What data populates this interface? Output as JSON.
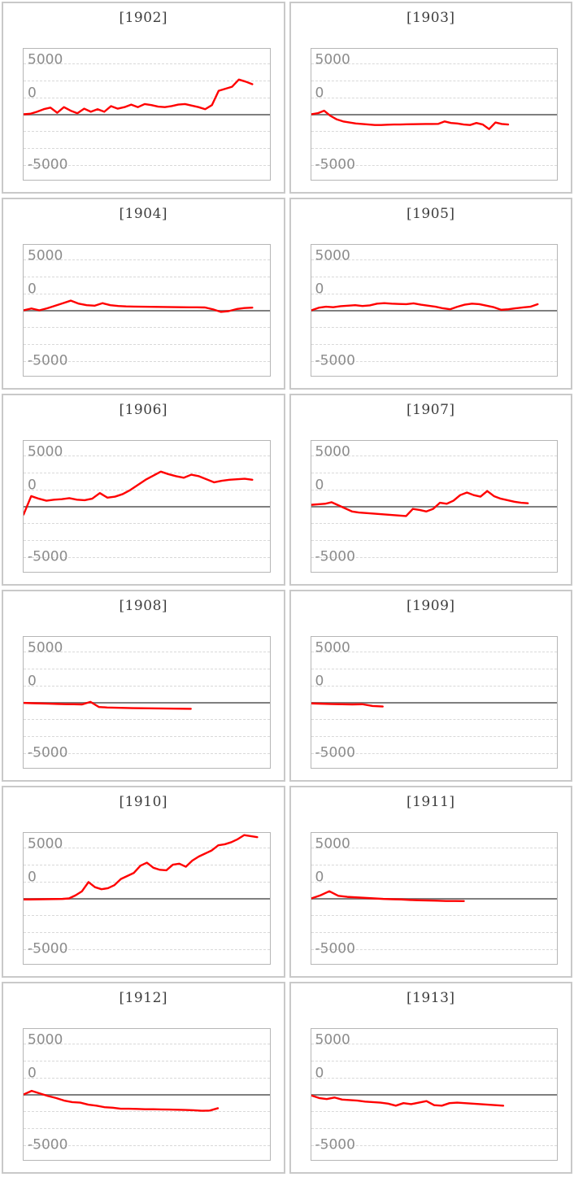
{
  "colors": {
    "line": "#ff0000",
    "zero_axis_line": "#7f7f7f",
    "gridline": "#d9d9d9",
    "tick_text": "#8c8c8c",
    "title_text": "#3d3d3d",
    "panel_border": "#c9c9c9",
    "plot_border": "#b6b6b6",
    "background": "#ffffff"
  },
  "axis": {
    "tick_labels": [
      "5000",
      "0",
      "-5000"
    ]
  },
  "chart_data": [
    {
      "type": "line",
      "title": "[1902]",
      "yticks": [
        5000,
        0,
        -5000
      ],
      "ylim": [
        -6400,
        6400
      ],
      "grid": "horizontal-dashed",
      "zero_axis": true,
      "x_end_fraction": 0.93,
      "values": [
        0,
        50,
        250,
        500,
        650,
        150,
        700,
        350,
        100,
        550,
        250,
        500,
        250,
        800,
        550,
        700,
        950,
        700,
        1000,
        900,
        750,
        700,
        800,
        950,
        1000,
        850,
        700,
        500,
        900,
        2300,
        2500,
        2700,
        3400,
        3200,
        2950
      ]
    },
    {
      "type": "line",
      "title": "[1903]",
      "yticks": [
        5000,
        0,
        -5000
      ],
      "ylim": [
        -6400,
        6400
      ],
      "grid": "horizontal-dashed",
      "zero_axis": true,
      "x_end_fraction": 0.8,
      "values": [
        0,
        100,
        350,
        -150,
        -500,
        -700,
        -800,
        -900,
        -950,
        -1000,
        -1050,
        -1050,
        -1020,
        -1000,
        -1000,
        -980,
        -970,
        -960,
        -950,
        -950,
        -940,
        -700,
        -850,
        -900,
        -1000,
        -1050,
        -850,
        -1000,
        -1450,
        -800,
        -950,
        -1000
      ]
    },
    {
      "type": "line",
      "title": "[1904]",
      "yticks": [
        5000,
        0,
        -5000
      ],
      "ylim": [
        -6400,
        6400
      ],
      "grid": "horizontal-dashed",
      "zero_axis": true,
      "x_end_fraction": 0.93,
      "values": [
        0,
        180,
        0,
        200,
        450,
        700,
        950,
        650,
        500,
        450,
        700,
        500,
        420,
        380,
        360,
        350,
        340,
        330,
        320,
        310,
        300,
        295,
        290,
        280,
        100,
        -150,
        -80,
        120,
        220,
        260
      ]
    },
    {
      "type": "line",
      "title": "[1905]",
      "yticks": [
        5000,
        0,
        -5000
      ],
      "ylim": [
        -6400,
        6400
      ],
      "grid": "horizontal-dashed",
      "zero_axis": true,
      "x_end_fraction": 0.92,
      "values": [
        0,
        250,
        350,
        300,
        400,
        450,
        500,
        420,
        480,
        650,
        700,
        650,
        620,
        600,
        680,
        550,
        450,
        350,
        200,
        100,
        350,
        550,
        650,
        600,
        450,
        300,
        50,
        100,
        200,
        280,
        350,
        600
      ]
    },
    {
      "type": "line",
      "title": "[1906]",
      "yticks": [
        5000,
        0,
        -5000
      ],
      "ylim": [
        -6400,
        6400
      ],
      "grid": "horizontal-dashed",
      "zero_axis": true,
      "x_end_fraction": 0.93,
      "values": [
        -800,
        1000,
        750,
        550,
        650,
        700,
        800,
        650,
        600,
        750,
        1300,
        850,
        950,
        1200,
        1600,
        2100,
        2600,
        3000,
        3400,
        3150,
        2950,
        2800,
        3100,
        2950,
        2650,
        2350,
        2500,
        2600,
        2650,
        2700,
        2600
      ]
    },
    {
      "type": "line",
      "title": "[1907]",
      "yticks": [
        5000,
        0,
        -5000
      ],
      "ylim": [
        -6400,
        6400
      ],
      "grid": "horizontal-dashed",
      "zero_axis": true,
      "x_end_fraction": 0.88,
      "values": [
        150,
        200,
        250,
        400,
        100,
        -200,
        -500,
        -600,
        -650,
        -700,
        -750,
        -800,
        -850,
        -900,
        -950,
        -250,
        -350,
        -500,
        -250,
        350,
        250,
        550,
        1100,
        1350,
        1100,
        950,
        1500,
        1000,
        750,
        600,
        450,
        350,
        300
      ]
    },
    {
      "type": "line",
      "title": "[1908]",
      "yticks": [
        5000,
        0,
        -5000
      ],
      "ylim": [
        -6400,
        6400
      ],
      "grid": "horizontal-dashed",
      "zero_axis": true,
      "x_end_fraction": 0.68,
      "values": [
        -50,
        -80,
        -100,
        -120,
        -150,
        -170,
        -180,
        -200,
        50,
        -450,
        -500,
        -520,
        -540,
        -560,
        -570,
        -580,
        -590,
        -600,
        -610,
        -620,
        -630
      ]
    },
    {
      "type": "line",
      "title": "[1909]",
      "yticks": [
        5000,
        0,
        -5000
      ],
      "ylim": [
        -6400,
        6400
      ],
      "grid": "horizontal-dashed",
      "zero_axis": true,
      "x_end_fraction": 0.29,
      "values": [
        -100,
        -130,
        -160,
        -180,
        -200,
        -180,
        -350,
        -400
      ]
    },
    {
      "type": "line",
      "title": "[1910]",
      "yticks": [
        5000,
        0,
        -5000
      ],
      "ylim": [
        -6400,
        6400
      ],
      "grid": "horizontal-dashed",
      "zero_axis": true,
      "x_end_fraction": 0.95,
      "values": [
        -100,
        -100,
        -90,
        -80,
        -70,
        -60,
        -50,
        0,
        300,
        700,
        1600,
        1100,
        900,
        1000,
        1300,
        1900,
        2200,
        2500,
        3200,
        3500,
        3000,
        2800,
        2750,
        3300,
        3400,
        3100,
        3700,
        4100,
        4400,
        4700,
        5200,
        5300,
        5500,
        5800,
        6200,
        6100,
        6000
      ]
    },
    {
      "type": "line",
      "title": "[1911]",
      "yticks": [
        5000,
        0,
        -5000
      ],
      "ylim": [
        -6400,
        6400
      ],
      "grid": "horizontal-dashed",
      "zero_axis": true,
      "x_end_fraction": 0.62,
      "values": [
        0,
        300,
        700,
        250,
        150,
        100,
        50,
        0,
        -50,
        -80,
        -100,
        -150,
        -180,
        -200,
        -220,
        -250,
        -250,
        -260
      ]
    },
    {
      "type": "line",
      "title": "[1912]",
      "yticks": [
        5000,
        0,
        -5000
      ],
      "ylim": [
        -6400,
        6400
      ],
      "grid": "horizontal-dashed",
      "zero_axis": true,
      "x_end_fraction": 0.79,
      "values": [
        0,
        350,
        100,
        -150,
        -350,
        -600,
        -750,
        -800,
        -1000,
        -1100,
        -1250,
        -1300,
        -1400,
        -1400,
        -1420,
        -1450,
        -1450,
        -1470,
        -1480,
        -1500,
        -1520,
        -1550,
        -1600,
        -1580,
        -1350
      ]
    },
    {
      "type": "line",
      "title": "[1913]",
      "yticks": [
        5000,
        0,
        -5000
      ],
      "ylim": [
        -6400,
        6400
      ],
      "grid": "horizontal-dashed",
      "zero_axis": true,
      "x_end_fraction": 0.78,
      "values": [
        -100,
        -350,
        -450,
        -300,
        -500,
        -550,
        -600,
        -700,
        -750,
        -800,
        -900,
        -1100,
        -850,
        -950,
        -800,
        -650,
        -1050,
        -1100,
        -850,
        -800,
        -850,
        -900,
        -950,
        -1000,
        -1050,
        -1100
      ]
    }
  ]
}
